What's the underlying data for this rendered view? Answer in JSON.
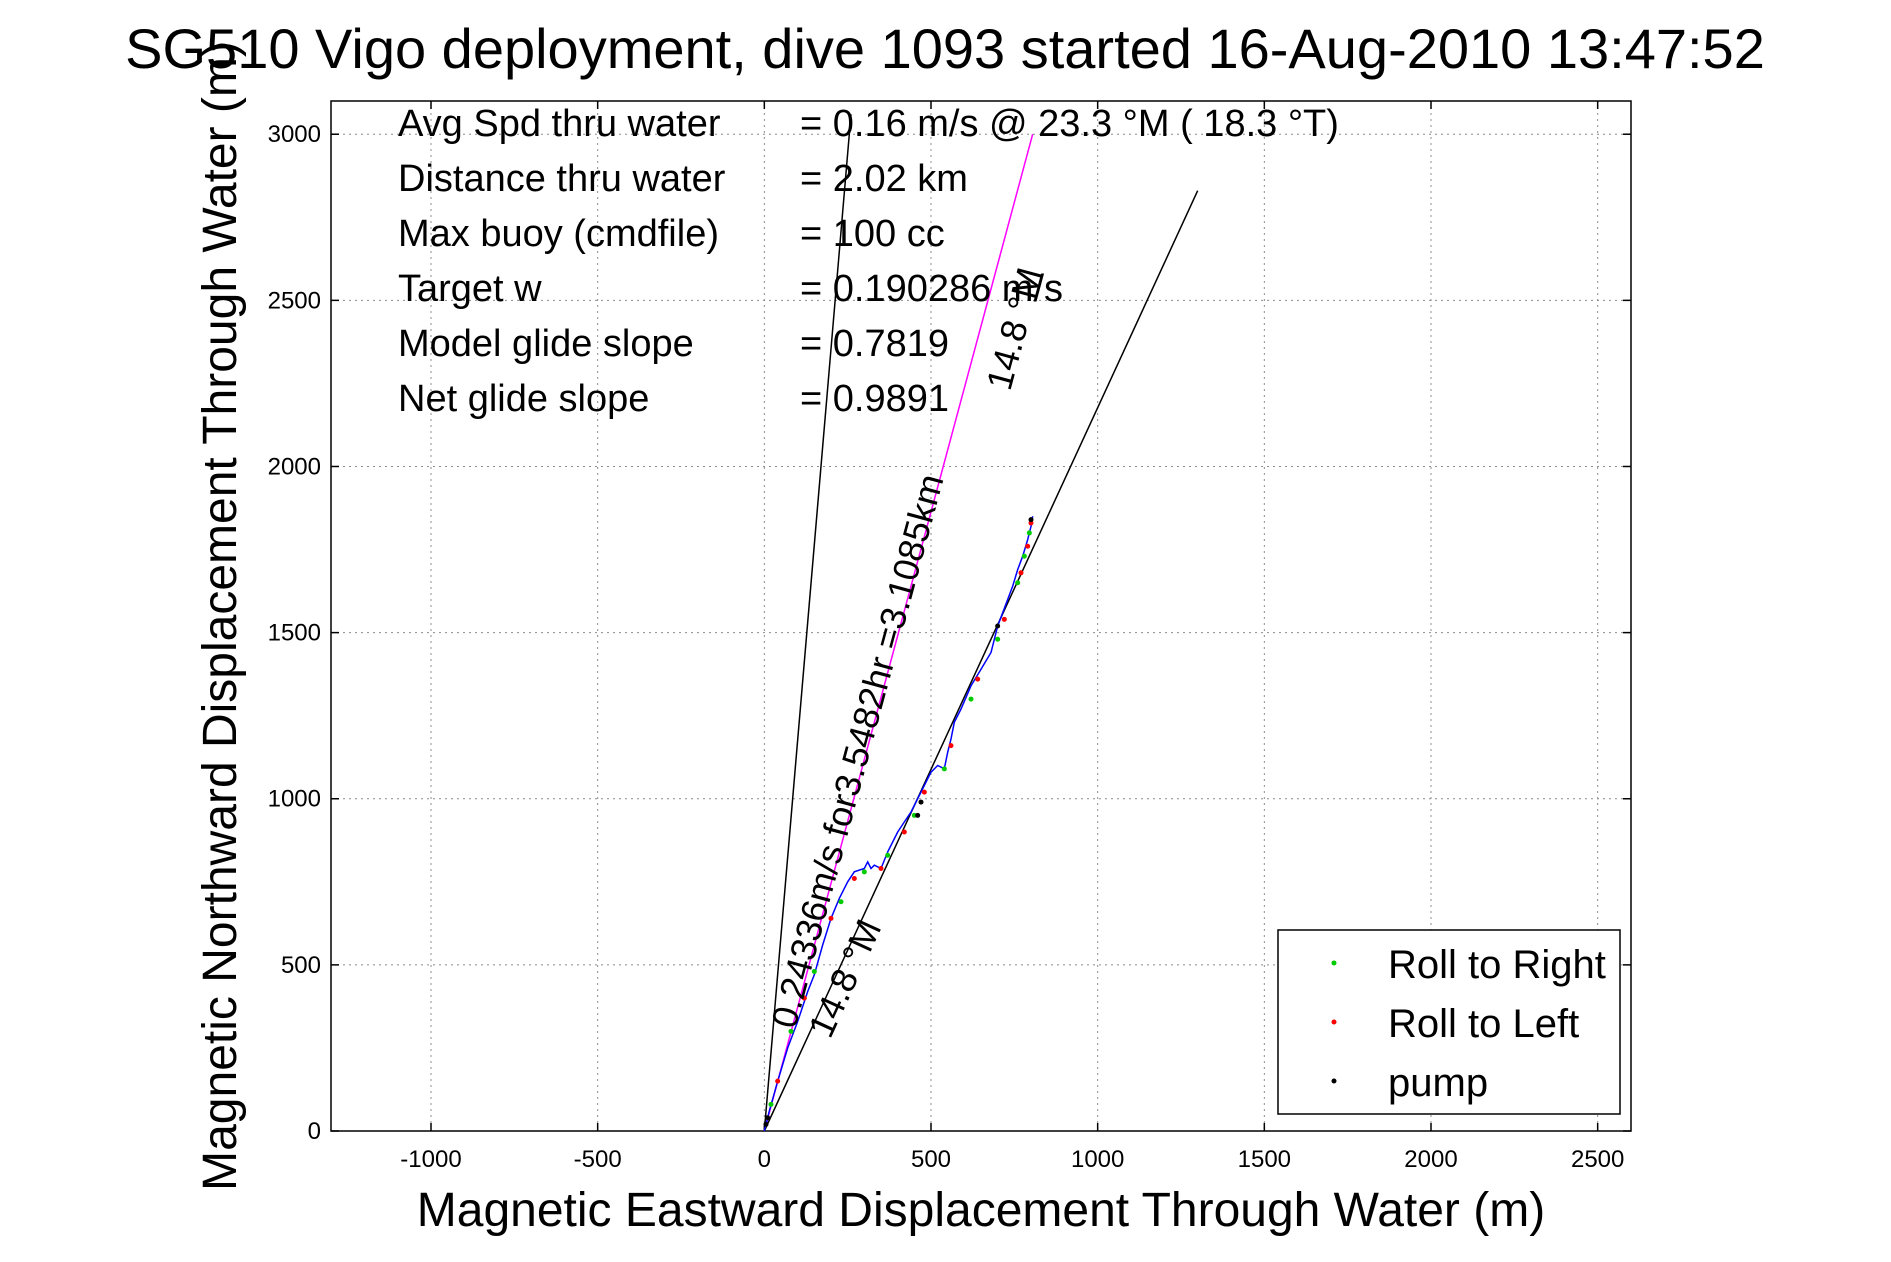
{
  "chart_data": {
    "type": "line",
    "title": "SG510 Vigo deployment, dive 1093 started 16-Aug-2010 13:47:52",
    "xlabel": "Magnetic Eastward Displacement Through Water (m)",
    "ylabel": "Magnetic Northward Displacement Through Water (m)",
    "xlim": [
      -1300,
      2600
    ],
    "ylim": [
      0,
      3100
    ],
    "xticks": [
      -1000,
      -500,
      0,
      500,
      1000,
      1500,
      2000,
      2500
    ],
    "yticks": [
      0,
      500,
      1000,
      1500,
      2000,
      2500,
      3000
    ],
    "grid": true,
    "legend_position": "bottom-right",
    "info_lines": [
      {
        "label": "Avg Spd thru water",
        "value": "=  0.16 m/s @  23.3 °M ( 18.3 °T)"
      },
      {
        "label": "Distance thru water",
        "value": "=  2.02 km"
      },
      {
        "label": "Max buoy (cmdfile)",
        "value": "= 100 cc"
      },
      {
        "label": "Target w",
        "value": "= 0.190286 m/s"
      },
      {
        "label": "Model glide slope",
        "value": "= 0.7819"
      },
      {
        "label": "Net glide slope",
        "value": "= 0.9891"
      }
    ],
    "annotations": {
      "speed_label": "0.24336m/s for3.5482hr =3.1085km",
      "heading_upper": "14.8 °M",
      "heading_lower": "14.8 °M"
    },
    "reference_lines": [
      {
        "name": "left-guide",
        "x": [
          0,
          260
        ],
        "y": [
          0,
          3060
        ],
        "color": "#000000"
      },
      {
        "name": "magenta-heading",
        "x": [
          0,
          805
        ],
        "y": [
          0,
          3000
        ],
        "color": "#ff00ff"
      },
      {
        "name": "right-guide",
        "x": [
          0,
          1300
        ],
        "y": [
          0,
          2830
        ],
        "color": "#000000"
      }
    ],
    "track": {
      "color": "#0000ff",
      "x": [
        0,
        15,
        40,
        70,
        100,
        130,
        150,
        175,
        200,
        225,
        250,
        270,
        300,
        310,
        320,
        330,
        350,
        370,
        400,
        420,
        440,
        460,
        480,
        500,
        520,
        540,
        550,
        560,
        570,
        590,
        620,
        650,
        680,
        700,
        715,
        730,
        745,
        760,
        775,
        790,
        800,
        805
      ],
      "y": [
        0,
        60,
        150,
        250,
        330,
        420,
        470,
        560,
        640,
        700,
        750,
        780,
        790,
        810,
        790,
        800,
        790,
        840,
        900,
        930,
        960,
        1000,
        1040,
        1080,
        1100,
        1090,
        1140,
        1180,
        1230,
        1270,
        1340,
        1390,
        1440,
        1520,
        1560,
        1600,
        1640,
        1690,
        1730,
        1780,
        1820,
        1850
      ]
    },
    "series": [
      {
        "name": "Roll to Right",
        "color": "#00cc00",
        "x": [
          20,
          80,
          150,
          230,
          300,
          370,
          450,
          540,
          620,
          700,
          760,
          780,
          795
        ],
        "y": [
          80,
          300,
          480,
          690,
          780,
          830,
          950,
          1090,
          1300,
          1480,
          1650,
          1730,
          1800
        ]
      },
      {
        "name": "Roll to Left",
        "color": "#ff0000",
        "x": [
          40,
          120,
          200,
          270,
          350,
          420,
          480,
          560,
          640,
          720,
          770,
          790,
          800
        ],
        "y": [
          150,
          400,
          640,
          760,
          790,
          900,
          1020,
          1160,
          1360,
          1540,
          1680,
          1760,
          1830
        ]
      },
      {
        "name": "pump",
        "color": "#000000",
        "x": [
          5,
          10,
          460,
          470,
          700,
          800
        ],
        "y": [
          20,
          40,
          950,
          990,
          1520,
          1840
        ]
      }
    ]
  }
}
